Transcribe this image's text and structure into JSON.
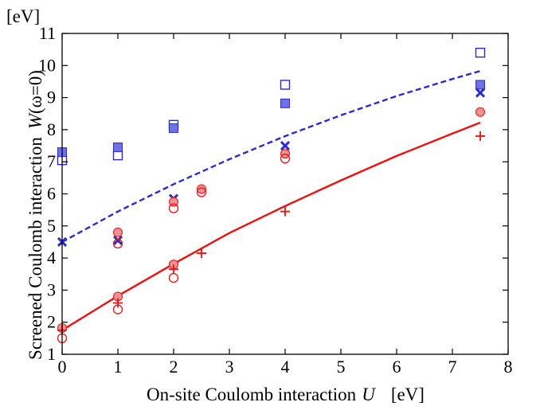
{
  "chart_data": {
    "type": "scatter",
    "title": "",
    "ylabel_prefix": "Screened Coulomb interaction",
    "ylabel_W": "W",
    "ylabel_suffix": "(ω=0)",
    "ylabel_unit": "[eV]",
    "xlabel_prefix": "On-site Coulomb interaction",
    "xlabel_U": "U",
    "xlabel_unit": "[eV]",
    "xlim": [
      0,
      8
    ],
    "ylim": [
      1,
      11
    ],
    "xticks": [
      "0",
      "1",
      "2",
      "3",
      "4",
      "5",
      "6",
      "7",
      "8"
    ],
    "yticks": [
      "1",
      "2",
      "3",
      "4",
      "5",
      "6",
      "7",
      "8",
      "9",
      "10",
      "11"
    ],
    "grid": false,
    "colors": {
      "blue": "#2a2ad4",
      "blue_fill": "#7070e8",
      "red": "#ee1111",
      "red_fill": "#f09090"
    },
    "series": [
      {
        "marker": "line-dashed",
        "color": "blue",
        "x": [
          0,
          1,
          2,
          3,
          4,
          5,
          6,
          7,
          7.5
        ],
        "y": [
          4.5,
          5.45,
          6.3,
          7.08,
          7.8,
          8.45,
          9.05,
          9.58,
          9.83
        ]
      },
      {
        "marker": "line-solid",
        "color": "red",
        "x": [
          0,
          1,
          2,
          3,
          4,
          5,
          6,
          7,
          7.5
        ],
        "y": [
          1.75,
          2.82,
          3.82,
          4.78,
          5.62,
          6.42,
          7.18,
          7.88,
          8.22
        ]
      },
      {
        "marker": "square-open",
        "color": "blue",
        "x": [
          0,
          1,
          2,
          4,
          7.5
        ],
        "y": [
          7.05,
          7.2,
          8.15,
          9.4,
          10.4
        ]
      },
      {
        "marker": "square-filled",
        "color": "blue",
        "x": [
          0,
          1,
          2,
          4,
          7.5
        ],
        "y": [
          7.3,
          7.45,
          8.05,
          8.82,
          9.4
        ]
      },
      {
        "marker": "x",
        "color": "blue",
        "x": [
          0,
          1,
          2,
          4,
          7.5
        ],
        "y": [
          4.5,
          4.55,
          5.85,
          7.5,
          9.15
        ]
      },
      {
        "marker": "circle-filled",
        "color": "red",
        "x": [
          0,
          1,
          2,
          2.5,
          4,
          7.5
        ],
        "y": [
          1.82,
          4.8,
          5.75,
          6.15,
          7.25,
          8.55
        ]
      },
      {
        "marker": "circle-open",
        "color": "red",
        "x": [
          0,
          1,
          2,
          2.5,
          4
        ],
        "y": [
          1.5,
          4.45,
          5.55,
          6.05,
          7.1
        ]
      },
      {
        "marker": "circle-filled",
        "color": "red",
        "x": [
          1,
          2
        ],
        "y": [
          2.8,
          3.8
        ]
      },
      {
        "marker": "circle-open",
        "color": "red",
        "x": [
          1,
          2
        ],
        "y": [
          2.4,
          3.38
        ]
      },
      {
        "marker": "plus",
        "color": "red",
        "x": [
          0,
          1,
          2,
          2.5,
          4,
          7.5
        ],
        "y": [
          1.75,
          2.6,
          3.65,
          4.15,
          5.45,
          7.8
        ]
      }
    ]
  }
}
